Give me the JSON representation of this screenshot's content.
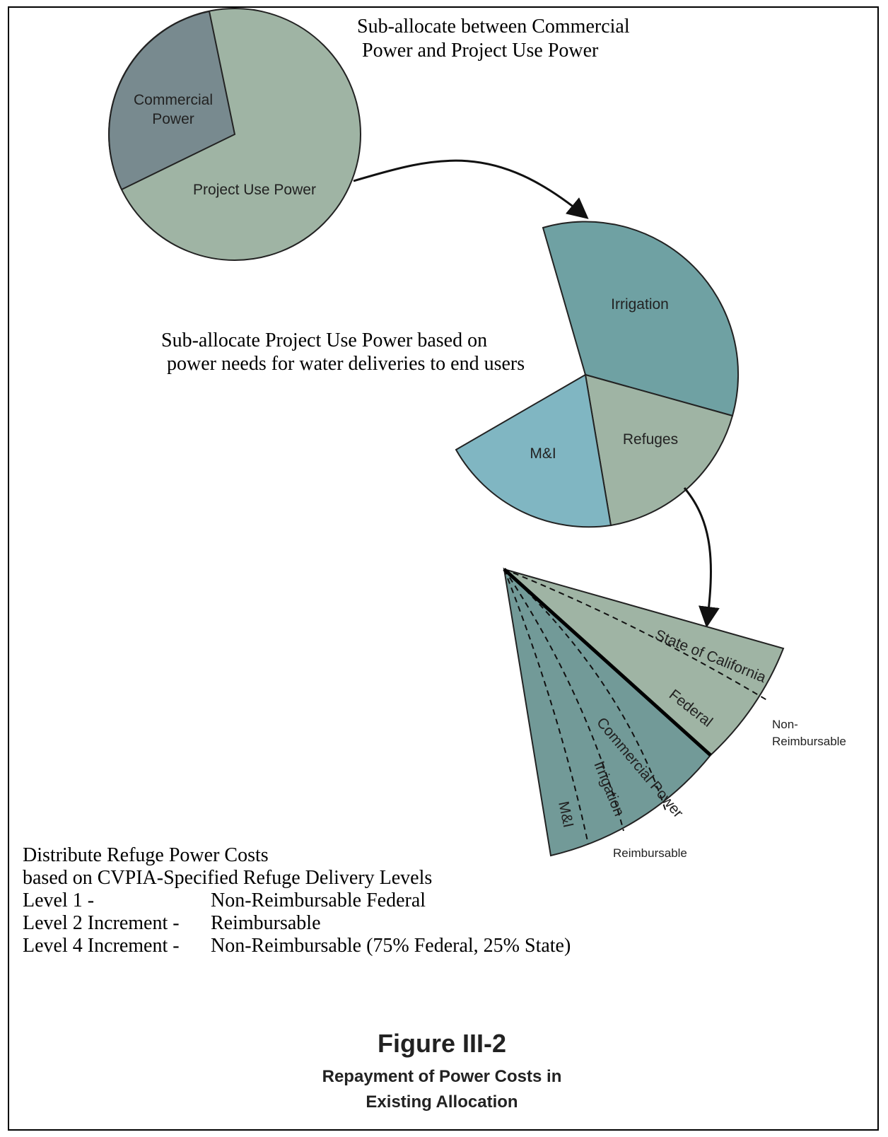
{
  "top_note": [
    "Sub-allocate between Commercial",
    "Power and Project Use Power"
  ],
  "pie1": {
    "labels": [
      [
        "Commercial",
        "Power"
      ],
      "Project Use Power"
    ]
  },
  "middle_note": [
    "Sub-allocate Project Use Power based on",
    "power needs for water deliveries to end users"
  ],
  "pie2": {
    "labels": [
      "Irrigation",
      "Refuges",
      "M&I"
    ]
  },
  "fan": {
    "labels": [
      "State of California",
      "Federal",
      "Commercial Power",
      "Irrigation",
      "M&I"
    ],
    "groups": [
      [
        "Non-",
        "Reimbursable"
      ],
      "Reimbursable"
    ]
  },
  "bottom_note": {
    "lines": [
      "Distribute Refuge Power Costs",
      "based on CVPIA-Specified Refuge Delivery Levels"
    ],
    "levels": [
      [
        "Level 1 -",
        "Non-Reimbursable Federal"
      ],
      [
        "Level 2 Increment -",
        "Reimbursable"
      ],
      [
        "Level 4 Increment -",
        "Non-Reimbursable (75% Federal, 25% State)"
      ]
    ]
  },
  "figure": {
    "number": "Figure III-2",
    "caption": [
      "Repayment of Power Costs in",
      "Existing Allocation"
    ]
  }
}
